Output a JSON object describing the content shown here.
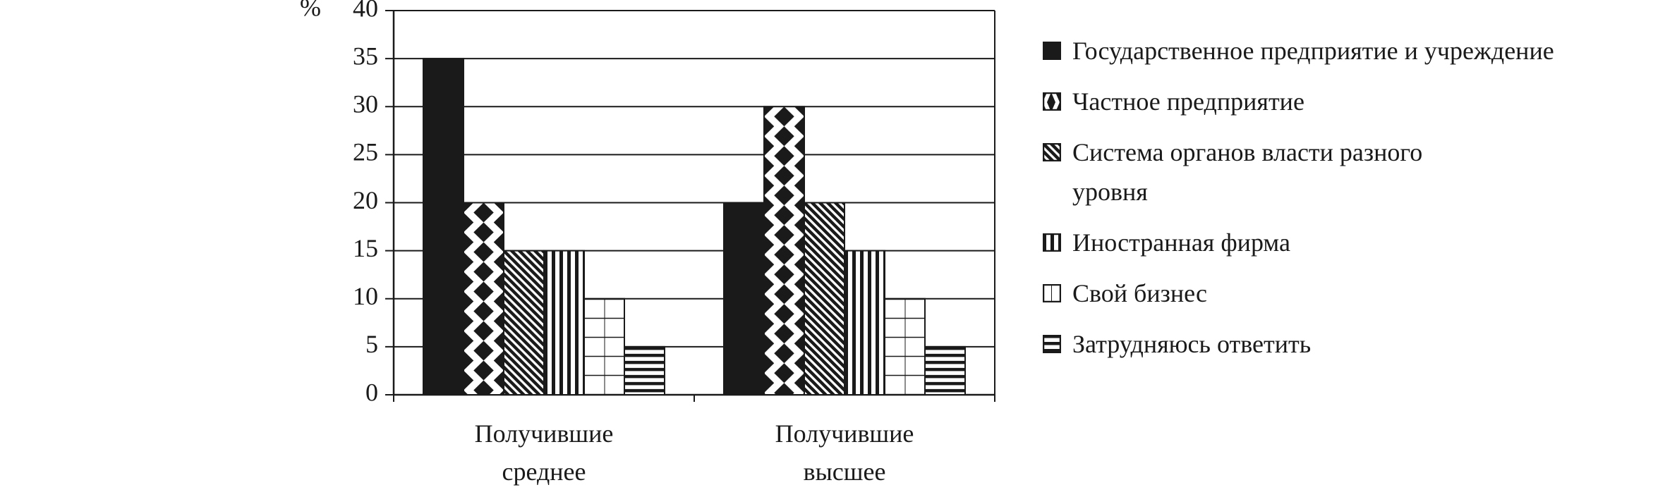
{
  "chart_data": {
    "type": "bar",
    "y_label": "%",
    "categories": [
      "Получившие среднее",
      "Получившие высшее"
    ],
    "series": [
      {
        "name": "Государственное предприятие и учреждение",
        "color": "#1a1a1a",
        "pattern": "solid",
        "values": [
          35,
          20
        ]
      },
      {
        "name": "Частное предприятие",
        "color": "#1a1a1a",
        "pattern": "diamonds",
        "values": [
          20,
          30
        ]
      },
      {
        "name": "Система органов власти разного уровня",
        "color": "#1a1a1a",
        "pattern": "diagonal",
        "values": [
          15,
          20
        ]
      },
      {
        "name": "Иностранная фирма",
        "color": "#1a1a1a",
        "pattern": "vertical",
        "values": [
          15,
          15
        ]
      },
      {
        "name": "Свой бизнес",
        "color": "#1a1a1a",
        "pattern": "grid",
        "values": [
          10,
          10
        ]
      },
      {
        "name": "Затрудняюсь ответить",
        "color": "#1a1a1a",
        "pattern": "horizontal",
        "values": [
          5,
          5
        ]
      }
    ],
    "ylim": [
      0,
      40
    ],
    "yticks": [
      0,
      5,
      10,
      15,
      20,
      25,
      30,
      35,
      40
    ],
    "grid": true
  }
}
